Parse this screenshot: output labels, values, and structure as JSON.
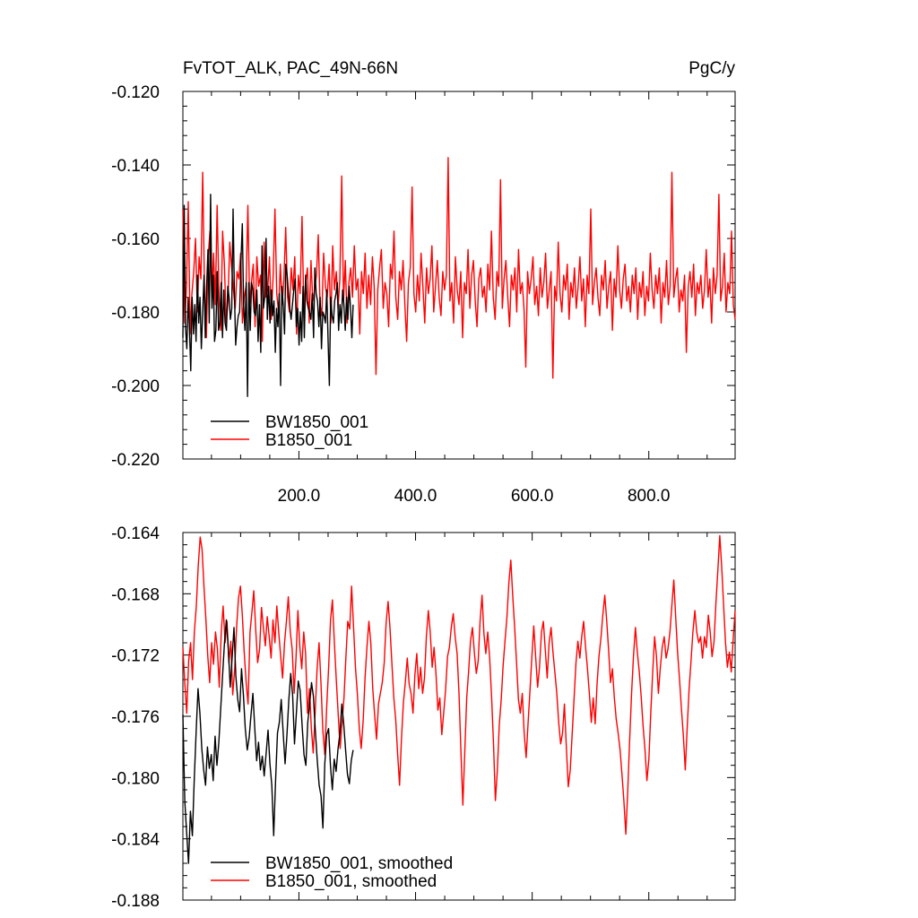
{
  "header": {
    "title_left": "FvTOT_ALK, PAC_49N-66N",
    "title_right": "PgC/y"
  },
  "chart_data": [
    {
      "type": "line",
      "title": "FvTOT_ALK, PAC_49N-66N",
      "units": "PgC/y",
      "xlim": [
        1,
        948
      ],
      "ylim": [
        -0.22,
        -0.12
      ],
      "x_ticks": [
        200,
        400,
        600,
        800
      ],
      "x_tick_labels": [
        "200.0",
        "400.0",
        "600.0",
        "800.0"
      ],
      "y_ticks": [
        -0.12,
        -0.14,
        -0.16,
        -0.18,
        -0.2,
        -0.22
      ],
      "y_tick_labels": [
        "-0.120",
        "-0.140",
        "-0.160",
        "-0.180",
        "-0.200",
        "-0.220"
      ],
      "legend_position": "bottom-left",
      "grid": false,
      "series": [
        {
          "name": "BW1850_001",
          "color": "#000000",
          "x_range": [
            1,
            293
          ],
          "y": [
            -0.187,
            -0.151,
            -0.184,
            -0.19,
            -0.176,
            -0.185,
            -0.196,
            -0.176,
            -0.186,
            -0.178,
            -0.188,
            -0.17,
            -0.183,
            -0.176,
            -0.19,
            -0.18,
            -0.17,
            -0.187,
            -0.173,
            -0.163,
            -0.183,
            -0.148,
            -0.179,
            -0.17,
            -0.188,
            -0.185,
            -0.169,
            -0.185,
            -0.183,
            -0.172,
            -0.187,
            -0.174,
            -0.183,
            -0.185,
            -0.173,
            -0.176,
            -0.182,
            -0.179,
            -0.152,
            -0.174,
            -0.189,
            -0.184,
            -0.181,
            -0.18,
            -0.166,
            -0.156,
            -0.178,
            -0.185,
            -0.172,
            -0.203,
            -0.172,
            -0.185,
            -0.172,
            -0.174,
            -0.18,
            -0.181,
            -0.174,
            -0.188,
            -0.178,
            -0.191,
            -0.162,
            -0.179,
            -0.176,
            -0.16,
            -0.182,
            -0.173,
            -0.183,
            -0.174,
            -0.181,
            -0.177,
            -0.191,
            -0.179,
            -0.184,
            -0.175,
            -0.2,
            -0.173,
            -0.178,
            -0.186,
            -0.167,
            -0.17,
            -0.175,
            -0.179,
            -0.182,
            -0.178,
            -0.174,
            -0.171,
            -0.184,
            -0.179,
            -0.189,
            -0.18,
            -0.188,
            -0.173,
            -0.187,
            -0.17,
            -0.177,
            -0.179,
            -0.18,
            -0.182,
            -0.175,
            -0.187,
            -0.168,
            -0.175,
            -0.177,
            -0.184,
            -0.176,
            -0.19,
            -0.18,
            -0.181,
            -0.183,
            -0.174,
            -0.188,
            -0.2,
            -0.176,
            -0.181,
            -0.183,
            -0.177,
            -0.175,
            -0.172,
            -0.185,
            -0.178,
            -0.183,
            -0.174,
            -0.178,
            -0.185,
            -0.176,
            -0.182,
            -0.173,
            -0.179,
            -0.187,
            -0.178
          ]
        },
        {
          "name": "B1850_001",
          "color": "#ff0000",
          "x_range": [
            1,
            948
          ],
          "y": [
            -0.152,
            -0.183,
            -0.173,
            -0.15,
            -0.186,
            -0.175,
            -0.169,
            -0.16,
            -0.18,
            -0.165,
            -0.171,
            -0.142,
            -0.175,
            -0.187,
            -0.165,
            -0.158,
            -0.176,
            -0.164,
            -0.178,
            -0.151,
            -0.176,
            -0.185,
            -0.158,
            -0.167,
            -0.183,
            -0.177,
            -0.161,
            -0.168,
            -0.174,
            -0.179,
            -0.169,
            -0.171,
            -0.164,
            -0.183,
            -0.176,
            -0.173,
            -0.151,
            -0.178,
            -0.172,
            -0.167,
            -0.184,
            -0.165,
            -0.173,
            -0.17,
            -0.188,
            -0.161,
            -0.176,
            -0.174,
            -0.165,
            -0.182,
            -0.17,
            -0.152,
            -0.175,
            -0.18,
            -0.167,
            -0.178,
            -0.171,
            -0.157,
            -0.176,
            -0.18,
            -0.168,
            -0.174,
            -0.165,
            -0.186,
            -0.17,
            -0.175,
            -0.154,
            -0.179,
            -0.172,
            -0.168,
            -0.183,
            -0.166,
            -0.177,
            -0.174,
            -0.17,
            -0.159,
            -0.178,
            -0.181,
            -0.164,
            -0.173,
            -0.176,
            -0.167,
            -0.183,
            -0.162,
            -0.174,
            -0.169,
            -0.179,
            -0.171,
            -0.143,
            -0.177,
            -0.166,
            -0.183,
            -0.172,
            -0.168,
            -0.176,
            -0.162,
            -0.174,
            -0.171,
            -0.186,
            -0.169,
            -0.175,
            -0.164,
            -0.179,
            -0.17,
            -0.178,
            -0.165,
            -0.173,
            -0.197,
            -0.174,
            -0.168,
            -0.163,
            -0.179,
            -0.172,
            -0.175,
            -0.184,
            -0.167,
            -0.171,
            -0.158,
            -0.176,
            -0.182,
            -0.169,
            -0.174,
            -0.166,
            -0.178,
            -0.188,
            -0.172,
            -0.168,
            -0.146,
            -0.175,
            -0.18,
            -0.17,
            -0.177,
            -0.164,
            -0.173,
            -0.183,
            -0.168,
            -0.175,
            -0.171,
            -0.162,
            -0.18,
            -0.173,
            -0.166,
            -0.176,
            -0.181,
            -0.169,
            -0.174,
            -0.17,
            -0.138,
            -0.177,
            -0.172,
            -0.183,
            -0.165,
            -0.174,
            -0.178,
            -0.169,
            -0.187,
            -0.172,
            -0.175,
            -0.163,
            -0.179,
            -0.17,
            -0.166,
            -0.177,
            -0.184,
            -0.171,
            -0.168,
            -0.176,
            -0.173,
            -0.18,
            -0.167,
            -0.174,
            -0.158,
            -0.176,
            -0.182,
            -0.169,
            -0.173,
            -0.144,
            -0.179,
            -0.171,
            -0.166,
            -0.176,
            -0.184,
            -0.17,
            -0.174,
            -0.168,
            -0.18,
            -0.163,
            -0.175,
            -0.172,
            -0.179,
            -0.195,
            -0.169,
            -0.175,
            -0.171,
            -0.165,
            -0.178,
            -0.173,
            -0.181,
            -0.168,
            -0.176,
            -0.172,
            -0.164,
            -0.179,
            -0.174,
            -0.169,
            -0.198,
            -0.173,
            -0.177,
            -0.161,
            -0.175,
            -0.18,
            -0.17,
            -0.174,
            -0.167,
            -0.182,
            -0.172,
            -0.176,
            -0.168,
            -0.179,
            -0.173,
            -0.165,
            -0.177,
            -0.171,
            -0.184,
            -0.17,
            -0.175,
            -0.152,
            -0.178,
            -0.172,
            -0.168,
            -0.176,
            -0.181,
            -0.17,
            -0.174,
            -0.166,
            -0.179,
            -0.173,
            -0.169,
            -0.185,
            -0.171,
            -0.176,
            -0.162,
            -0.174,
            -0.179,
            -0.171,
            -0.167,
            -0.177,
            -0.173,
            -0.18,
            -0.17,
            -0.175,
            -0.168,
            -0.182,
            -0.172,
            -0.176,
            -0.169,
            -0.181,
            -0.173,
            -0.177,
            -0.164,
            -0.174,
            -0.179,
            -0.17,
            -0.175,
            -0.168,
            -0.183,
            -0.172,
            -0.176,
            -0.166,
            -0.178,
            -0.173,
            -0.142,
            -0.176,
            -0.171,
            -0.168,
            -0.18,
            -0.174,
            -0.177,
            -0.17,
            -0.191,
            -0.173,
            -0.169,
            -0.176,
            -0.167,
            -0.181,
            -0.172,
            -0.175,
            -0.17,
            -0.179,
            -0.174,
            -0.163,
            -0.176,
            -0.171,
            -0.183,
            -0.168,
            -0.175,
            -0.17,
            -0.148,
            -0.177,
            -0.173,
            -0.164,
            -0.18,
            -0.172,
            -0.175,
            -0.158,
            -0.178,
            -0.182
          ]
        }
      ]
    },
    {
      "type": "line",
      "xlim": [
        1,
        948
      ],
      "ylim": [
        -0.188,
        -0.164
      ],
      "y_ticks": [
        -0.164,
        -0.168,
        -0.172,
        -0.176,
        -0.18,
        -0.184,
        -0.188
      ],
      "y_tick_labels": [
        "-0.164",
        "-0.168",
        "-0.172",
        "-0.176",
        "-0.180",
        "-0.184",
        "-0.188"
      ],
      "legend_position": "bottom-left",
      "grid": false,
      "series": [
        {
          "name": "BW1850_001, smoothed",
          "color": "#000000",
          "x_range": [
            1,
            293
          ],
          "y": [
            -0.1759,
            -0.1815,
            -0.1836,
            -0.1856,
            -0.1822,
            -0.1838,
            -0.1801,
            -0.177,
            -0.1742,
            -0.1758,
            -0.1781,
            -0.1795,
            -0.1805,
            -0.178,
            -0.1794,
            -0.1785,
            -0.1802,
            -0.1773,
            -0.1792,
            -0.1777,
            -0.1755,
            -0.1733,
            -0.1712,
            -0.1697,
            -0.1716,
            -0.1741,
            -0.1722,
            -0.1702,
            -0.1734,
            -0.1749,
            -0.1757,
            -0.1729,
            -0.1746,
            -0.1768,
            -0.1782,
            -0.1774,
            -0.1759,
            -0.1745,
            -0.1768,
            -0.1789,
            -0.1777,
            -0.1795,
            -0.1786,
            -0.1799,
            -0.1784,
            -0.1769,
            -0.1791,
            -0.1805,
            -0.1838,
            -0.1802,
            -0.1771,
            -0.1764,
            -0.1749,
            -0.1771,
            -0.1791,
            -0.1772,
            -0.1749,
            -0.1732,
            -0.1746,
            -0.1778,
            -0.1758,
            -0.1737,
            -0.1743,
            -0.1766,
            -0.1785,
            -0.1792,
            -0.1764,
            -0.1752,
            -0.1738,
            -0.1747,
            -0.1769,
            -0.1788,
            -0.1805,
            -0.1812,
            -0.1833,
            -0.1791,
            -0.1772,
            -0.1768,
            -0.1792,
            -0.1808,
            -0.1788,
            -0.1796,
            -0.1781,
            -0.1771,
            -0.1752,
            -0.1765,
            -0.1782,
            -0.1798,
            -0.1804,
            -0.1789,
            -0.1782
          ]
        },
        {
          "name": "B1850_001, smoothed",
          "color": "#ff0000",
          "x_range": [
            1,
            948
          ],
          "y": [
            -0.1715,
            -0.1738,
            -0.1758,
            -0.1724,
            -0.1712,
            -0.1736,
            -0.1705,
            -0.1688,
            -0.1662,
            -0.1643,
            -0.1651,
            -0.1675,
            -0.1697,
            -0.1721,
            -0.1738,
            -0.1712,
            -0.1726,
            -0.1705,
            -0.1716,
            -0.1741,
            -0.1705,
            -0.1688,
            -0.1712,
            -0.1698,
            -0.1725,
            -0.1711,
            -0.1746,
            -0.1729,
            -0.1702,
            -0.1683,
            -0.1675,
            -0.1694,
            -0.1718,
            -0.1738,
            -0.1752,
            -0.1705,
            -0.1692,
            -0.1678,
            -0.1704,
            -0.1725,
            -0.1716,
            -0.1689,
            -0.1702,
            -0.1714,
            -0.1695,
            -0.1708,
            -0.1722,
            -0.1697,
            -0.1712,
            -0.1688,
            -0.1705,
            -0.1721,
            -0.1735,
            -0.1712,
            -0.1698,
            -0.1682,
            -0.1705,
            -0.1716,
            -0.1745,
            -0.1722,
            -0.1691,
            -0.1715,
            -0.1729,
            -0.1705,
            -0.1719,
            -0.1758,
            -0.1742,
            -0.1768,
            -0.1784,
            -0.1757,
            -0.1729,
            -0.1712,
            -0.1738,
            -0.1769,
            -0.1785,
            -0.1754,
            -0.1728,
            -0.1697,
            -0.1684,
            -0.1712,
            -0.1736,
            -0.1759,
            -0.1781,
            -0.1765,
            -0.1748,
            -0.1722,
            -0.1698,
            -0.1703,
            -0.1675,
            -0.1702,
            -0.1728,
            -0.1745,
            -0.1768,
            -0.1781,
            -0.1763,
            -0.1735,
            -0.1715,
            -0.1698,
            -0.1712,
            -0.1742,
            -0.1759,
            -0.1775,
            -0.1752,
            -0.1745,
            -0.1738,
            -0.1725,
            -0.1699,
            -0.1685,
            -0.1702,
            -0.1725,
            -0.1748,
            -0.1762,
            -0.1785,
            -0.1805,
            -0.1775,
            -0.1751,
            -0.1738,
            -0.1722,
            -0.1739,
            -0.1745,
            -0.1758,
            -0.1733,
            -0.1719,
            -0.1742,
            -0.1728,
            -0.1745,
            -0.1735,
            -0.1708,
            -0.1691,
            -0.1705,
            -0.1728,
            -0.1715,
            -0.1732,
            -0.1756,
            -0.1748,
            -0.1772,
            -0.1758,
            -0.1743,
            -0.1721,
            -0.1715,
            -0.1702,
            -0.1693,
            -0.1708,
            -0.1719,
            -0.1745,
            -0.1782,
            -0.1818,
            -0.1784,
            -0.1748,
            -0.1731,
            -0.1711,
            -0.1702,
            -0.1718,
            -0.1732,
            -0.1724,
            -0.1698,
            -0.1681,
            -0.1706,
            -0.1719,
            -0.1705,
            -0.1722,
            -0.1748,
            -0.1778,
            -0.1815,
            -0.1795,
            -0.1766,
            -0.1749,
            -0.1727,
            -0.1711,
            -0.1695,
            -0.1673,
            -0.1658,
            -0.1681,
            -0.1701,
            -0.1725,
            -0.1749,
            -0.1758,
            -0.1745,
            -0.1771,
            -0.1787,
            -0.1765,
            -0.1744,
            -0.1721,
            -0.1701,
            -0.1722,
            -0.1741,
            -0.1728,
            -0.1705,
            -0.1698,
            -0.1717,
            -0.1735,
            -0.1712,
            -0.1702,
            -0.1718,
            -0.1731,
            -0.1745,
            -0.1764,
            -0.1778,
            -0.1771,
            -0.1752,
            -0.1781,
            -0.1806,
            -0.1795,
            -0.1772,
            -0.1749,
            -0.1725,
            -0.1711,
            -0.1722,
            -0.1708,
            -0.1698,
            -0.1715,
            -0.1729,
            -0.1745,
            -0.1764,
            -0.1748,
            -0.1765,
            -0.1739,
            -0.1721,
            -0.1709,
            -0.1694,
            -0.1681,
            -0.1697,
            -0.1716,
            -0.1738,
            -0.1729,
            -0.1748,
            -0.1762,
            -0.1771,
            -0.1782,
            -0.1798,
            -0.1815,
            -0.1837,
            -0.1809,
            -0.1775,
            -0.1745,
            -0.1721,
            -0.1702,
            -0.1718,
            -0.1731,
            -0.1747,
            -0.1766,
            -0.1782,
            -0.1802,
            -0.1788,
            -0.1758,
            -0.1732,
            -0.1708,
            -0.1721,
            -0.1745,
            -0.1728,
            -0.1715,
            -0.1708,
            -0.1722,
            -0.1716,
            -0.1705,
            -0.1688,
            -0.1671,
            -0.1695,
            -0.1718,
            -0.1736,
            -0.1755,
            -0.1773,
            -0.1795,
            -0.1768,
            -0.1742,
            -0.1724,
            -0.1705,
            -0.1691,
            -0.1705,
            -0.1712,
            -0.1708,
            -0.1722,
            -0.1708,
            -0.1715,
            -0.1694,
            -0.1705,
            -0.1721,
            -0.1711,
            -0.1686,
            -0.1664,
            -0.1642,
            -0.1662,
            -0.1688,
            -0.1712,
            -0.1728,
            -0.1718,
            -0.1731,
            -0.1709,
            -0.1691
          ]
        }
      ]
    }
  ]
}
